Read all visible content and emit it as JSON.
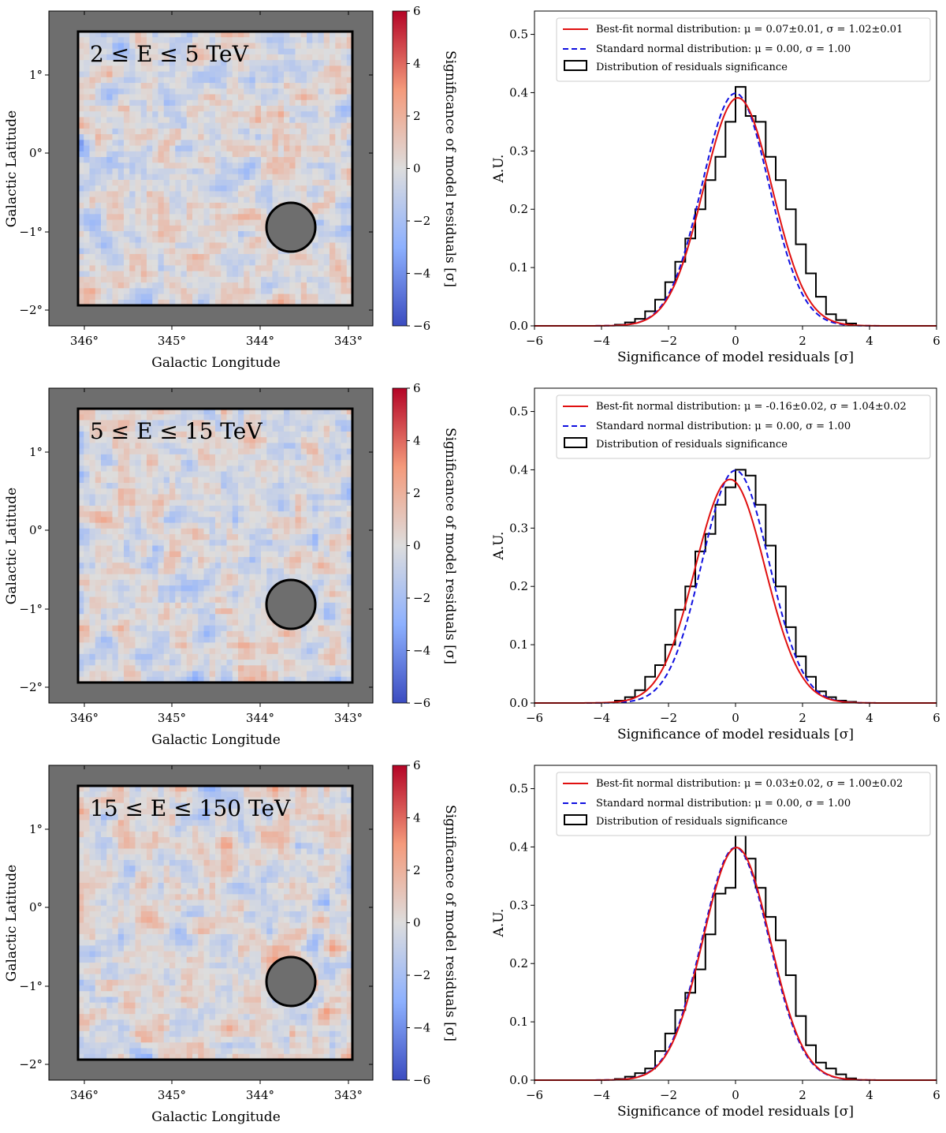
{
  "maps": [
    {
      "energy_label": "2 ≤ E ≤ 5 TeV",
      "seed": 7
    },
    {
      "energy_label": "5 ≤ E ≤ 15 TeV",
      "seed": 19
    },
    {
      "energy_label": "15 ≤ E ≤ 150 TeV",
      "seed": 31
    }
  ],
  "map_axes": {
    "xlabel": "Galactic Longitude",
    "ylabel": "Galactic Latitude",
    "xticks": [
      "346°",
      "345°",
      "344°",
      "343°"
    ],
    "yticks": [
      "1°",
      "0°",
      "−1°",
      "−2°"
    ],
    "colorbar_label": "Significance of model residuals [σ]",
    "colorbar_ticks": [
      "6",
      "4",
      "2",
      "0",
      "−2",
      "−4",
      "−6"
    ],
    "colorbar_range": [
      -6,
      6
    ]
  },
  "chart_data": [
    {
      "type": "histogram",
      "xlabel": "Significance of model residuals [σ]",
      "ylabel": "A.U.",
      "xlim": [
        -6,
        6
      ],
      "ylim": [
        0,
        0.54
      ],
      "xticks": [
        "−6",
        "−4",
        "−2",
        "0",
        "2",
        "4",
        "6"
      ],
      "yticks": [
        "0.0",
        "0.1",
        "0.2",
        "0.3",
        "0.4",
        "0.5"
      ],
      "legend": [
        "Best-fit normal distribution: μ = 0.07±0.01, σ = 1.02±0.01",
        "Standard normal distribution: μ = 0.00, σ = 1.00",
        "Distribution of residuals significance"
      ],
      "bestfit": {
        "mu": 0.07,
        "sigma": 1.02,
        "color": "#e01010"
      },
      "standard": {
        "mu": 0.0,
        "sigma": 1.0,
        "color": "#1010e0"
      },
      "bin_edges": [
        -3.6,
        -3.3,
        -3.0,
        -2.7,
        -2.4,
        -2.1,
        -1.8,
        -1.5,
        -1.2,
        -0.9,
        -0.6,
        -0.3,
        0.0,
        0.3,
        0.6,
        0.9,
        1.2,
        1.5,
        1.8,
        2.1,
        2.4,
        2.7,
        3.0,
        3.3,
        3.6
      ],
      "counts": [
        0.002,
        0.006,
        0.012,
        0.025,
        0.045,
        0.075,
        0.11,
        0.15,
        0.2,
        0.25,
        0.29,
        0.35,
        0.41,
        0.36,
        0.35,
        0.29,
        0.25,
        0.2,
        0.14,
        0.09,
        0.05,
        0.02,
        0.01,
        0.004
      ]
    },
    {
      "type": "histogram",
      "xlabel": "Significance of model residuals [σ]",
      "ylabel": "A.U.",
      "xlim": [
        -6,
        6
      ],
      "ylim": [
        0,
        0.54
      ],
      "xticks": [
        "−6",
        "−4",
        "−2",
        "0",
        "2",
        "4",
        "6"
      ],
      "yticks": [
        "0.0",
        "0.1",
        "0.2",
        "0.3",
        "0.4",
        "0.5"
      ],
      "legend": [
        "Best-fit normal distribution: μ = -0.16±0.02, σ = 1.04±0.02",
        "Standard normal distribution: μ = 0.00, σ = 1.00",
        "Distribution of residuals significance"
      ],
      "bestfit": {
        "mu": -0.16,
        "sigma": 1.04,
        "color": "#e01010"
      },
      "standard": {
        "mu": 0.0,
        "sigma": 1.0,
        "color": "#1010e0"
      },
      "bin_edges": [
        -3.6,
        -3.3,
        -3.0,
        -2.7,
        -2.4,
        -2.1,
        -1.8,
        -1.5,
        -1.2,
        -0.9,
        -0.6,
        -0.3,
        0.0,
        0.3,
        0.6,
        0.9,
        1.2,
        1.5,
        1.8,
        2.1,
        2.4,
        2.7,
        3.0,
        3.3,
        3.6
      ],
      "counts": [
        0.004,
        0.01,
        0.022,
        0.045,
        0.065,
        0.1,
        0.16,
        0.2,
        0.26,
        0.29,
        0.34,
        0.37,
        0.4,
        0.39,
        0.34,
        0.27,
        0.2,
        0.13,
        0.08,
        0.045,
        0.02,
        0.01,
        0.004,
        0.002
      ]
    },
    {
      "type": "histogram",
      "xlabel": "Significance of model residuals [σ]",
      "ylabel": "A.U.",
      "xlim": [
        -6,
        6
      ],
      "ylim": [
        0,
        0.54
      ],
      "xticks": [
        "−6",
        "−4",
        "−2",
        "0",
        "2",
        "4",
        "6"
      ],
      "yticks": [
        "0.0",
        "0.1",
        "0.2",
        "0.3",
        "0.4",
        "0.5"
      ],
      "legend": [
        "Best-fit normal distribution: μ = 0.03±0.02, σ = 1.00±0.02",
        "Standard normal distribution: μ = 0.00, σ = 1.00",
        "Distribution of residuals significance"
      ],
      "bestfit": {
        "mu": 0.03,
        "sigma": 1.0,
        "color": "#e01010"
      },
      "standard": {
        "mu": 0.0,
        "sigma": 1.0,
        "color": "#1010e0"
      },
      "bin_edges": [
        -3.6,
        -3.3,
        -3.0,
        -2.7,
        -2.4,
        -2.1,
        -1.8,
        -1.5,
        -1.2,
        -0.9,
        -0.6,
        -0.3,
        0.0,
        0.3,
        0.6,
        0.9,
        1.2,
        1.5,
        1.8,
        2.1,
        2.4,
        2.7,
        3.0,
        3.3,
        3.6
      ],
      "counts": [
        0.002,
        0.006,
        0.012,
        0.02,
        0.05,
        0.08,
        0.12,
        0.15,
        0.19,
        0.25,
        0.32,
        0.33,
        0.42,
        0.38,
        0.33,
        0.28,
        0.24,
        0.18,
        0.11,
        0.06,
        0.03,
        0.02,
        0.01,
        0.003
      ]
    }
  ]
}
